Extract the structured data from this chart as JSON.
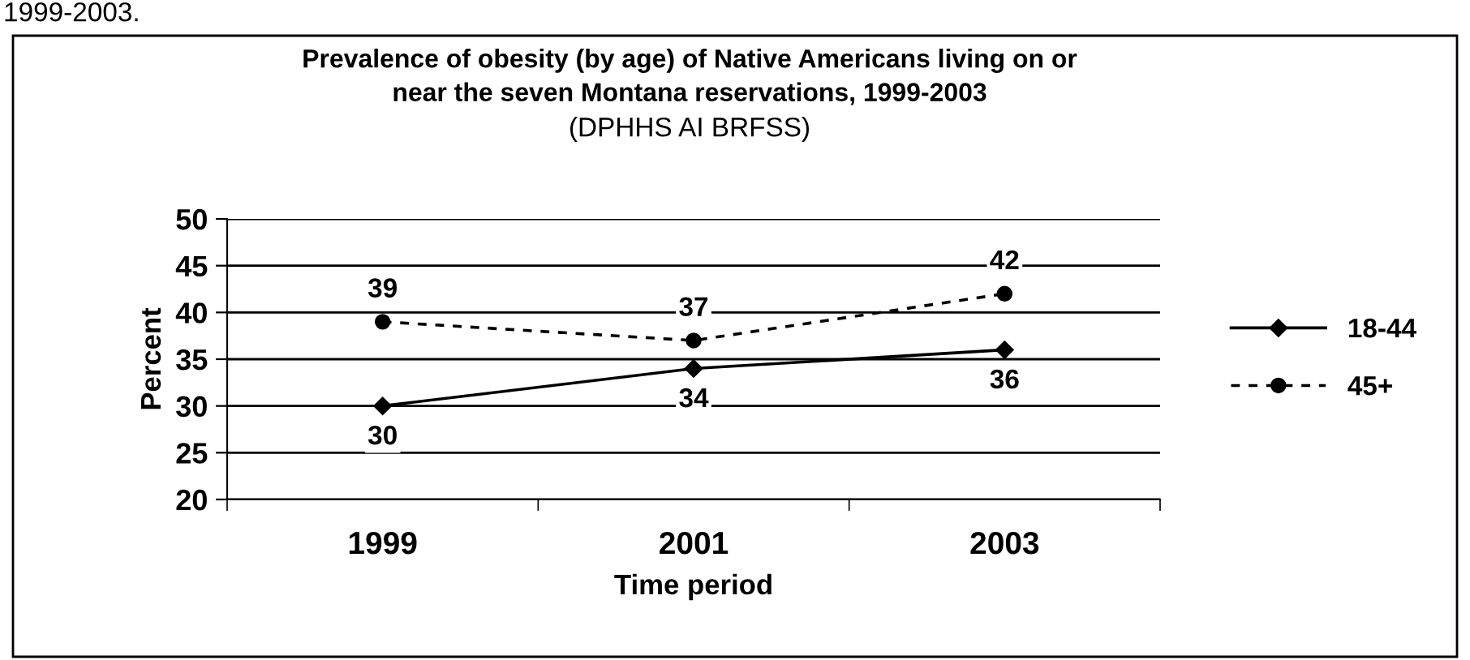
{
  "chart_data": {
    "type": "line",
    "title": "Prevalence of obesity (by age) of Native Americans living on or\nnear the seven Montana reservations, 1999-2003",
    "subtitle": "(DPHHS AI BRFSS)",
    "xlabel": "Time period",
    "ylabel": "Percent",
    "annotations": [
      "1999-2003."
    ],
    "categories": [
      "1999",
      "2001",
      "2003"
    ],
    "series": [
      {
        "name": "18-44",
        "color": "#000000",
        "values": [
          30,
          34,
          36
        ],
        "marker": "diamond",
        "line_style": "solid"
      },
      {
        "name": "45+",
        "color": "#000000",
        "values": [
          39,
          37,
          42
        ],
        "marker": "circle",
        "line_style": "dashed"
      }
    ],
    "ylim": [
      20,
      50
    ],
    "yticks": [
      20,
      25,
      30,
      35,
      40,
      45,
      50
    ],
    "grid": "y",
    "legend": "right",
    "data_labels": true
  }
}
